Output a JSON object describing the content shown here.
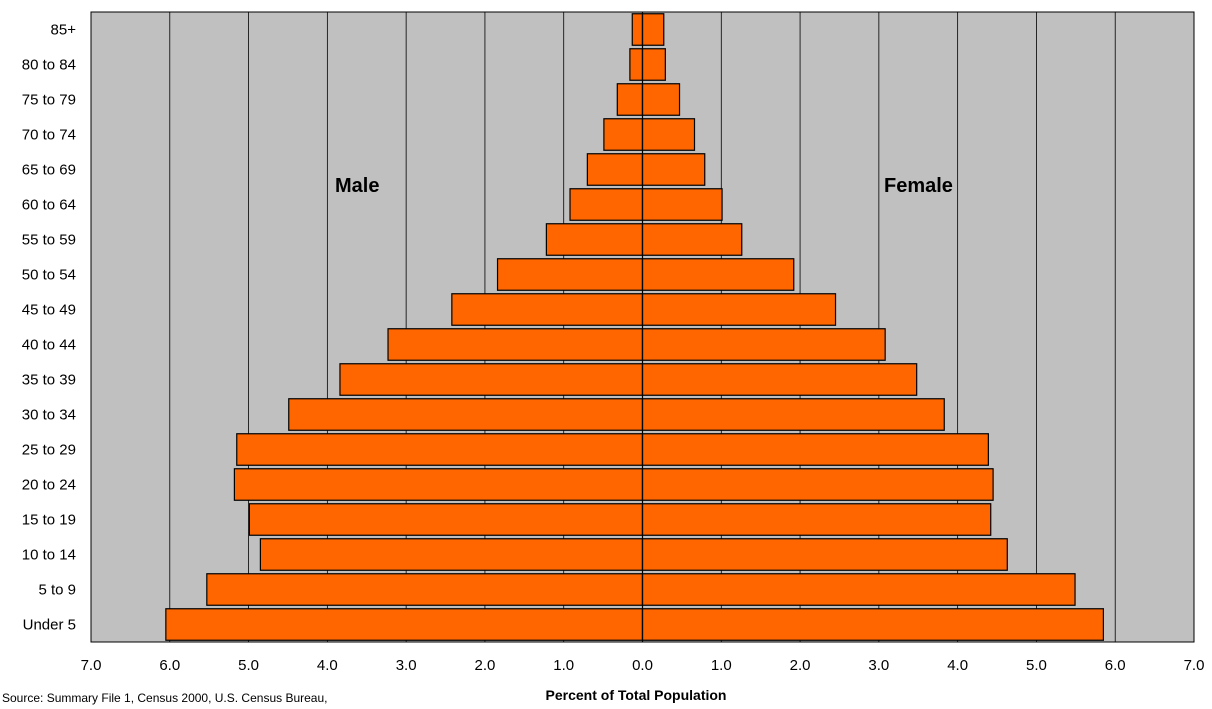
{
  "chart_data": {
    "type": "bar",
    "orientation": "horizontal",
    "layout": "population-pyramid",
    "categories": [
      "Under 5",
      "5 to 9",
      "10 to 14",
      "15 to 19",
      "20 to 24",
      "25 to 29",
      "30 to 34",
      "35 to 39",
      "40 to 44",
      "45 to 49",
      "50 to 54",
      "55 to 59",
      "60 to 64",
      "65 to 69",
      "70 to 74",
      "75 to 79",
      "80 to 84",
      "85+"
    ],
    "series": [
      {
        "name": "Male",
        "values": [
          6.05,
          5.53,
          4.85,
          4.99,
          5.18,
          5.15,
          4.49,
          3.84,
          3.23,
          2.42,
          1.84,
          1.22,
          0.92,
          0.7,
          0.49,
          0.32,
          0.16,
          0.13
        ]
      },
      {
        "name": "Female",
        "values": [
          5.85,
          5.49,
          4.63,
          4.42,
          4.45,
          4.39,
          3.83,
          3.48,
          3.08,
          2.45,
          1.92,
          1.26,
          1.01,
          0.79,
          0.66,
          0.47,
          0.29,
          0.27
        ]
      }
    ],
    "xlim": [
      -7,
      7
    ],
    "x_ticks": [
      "7.0",
      "6.0",
      "5.0",
      "4.0",
      "3.0",
      "2.0",
      "1.0",
      "0.0",
      "1.0",
      "2.0",
      "3.0",
      "4.0",
      "5.0",
      "6.0",
      "7.0"
    ],
    "xlabel": "Percent of Total Population",
    "ylabel": "",
    "title": "",
    "grid": "vertical",
    "legend": "none",
    "source": "Source: Summary File 1, Census 2000, U.S. Census Bureau,",
    "colors": {
      "bar": "#ff6600",
      "plot_background": "#c0c0c0",
      "border": "#000000"
    }
  }
}
